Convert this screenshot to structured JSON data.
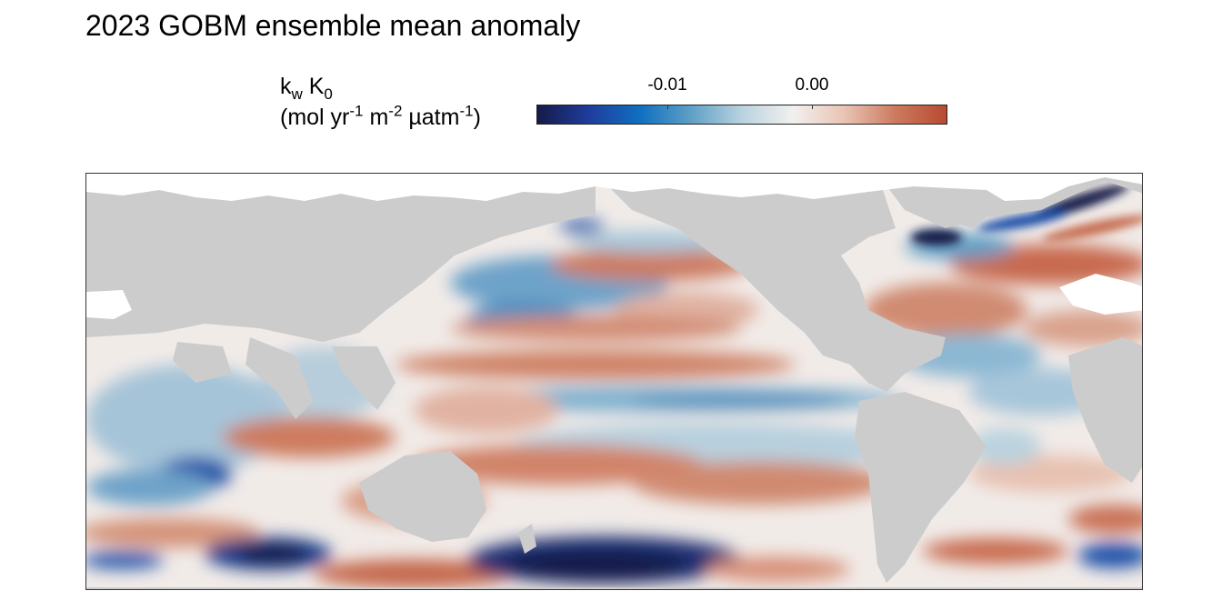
{
  "title": "2023 GOBM ensemble mean anomaly",
  "legend": {
    "label_line1_main": "k",
    "label_line1_sub1": "w",
    "label_line1_mid": " K",
    "label_line1_sub2": "0",
    "label_line2_a": "(mol yr",
    "label_line2_sup1": "-1",
    "label_line2_b": " m",
    "label_line2_sup2": "-2",
    "label_line2_c": " µatm",
    "label_line2_sup3": "-1",
    "label_line2_d": ")",
    "ticks": [
      "-0.01",
      "0.00"
    ],
    "colors": [
      "#151b4a",
      "#1f3c9c",
      "#0f6fc0",
      "#5f9fc6",
      "#b9d3df",
      "#f2f0ef",
      "#e9c4b4",
      "#cc7a5e",
      "#b84a31"
    ]
  },
  "map": {
    "land_color": "#cccccc",
    "sea_ice_color": "#ffffff",
    "projection": "Pacific-centred global (Indian Ocean to Atlantic)"
  }
}
